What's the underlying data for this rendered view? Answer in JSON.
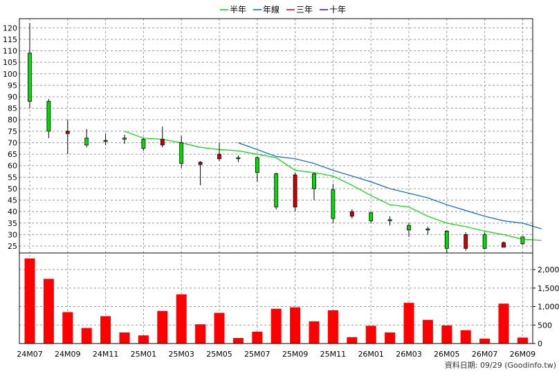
{
  "legend": [
    {
      "name": "半年",
      "color": "#00dd00"
    },
    {
      "name": "年線",
      "color": "#0066cc"
    },
    {
      "name": "三年",
      "color": "#dd0000"
    },
    {
      "name": "十年",
      "color": "#5500bb"
    }
  ],
  "source_note": "資料日期: 09/29 (Goodinfo.tw)",
  "chart_data": [
    {
      "type": "candlestick",
      "x_tick_labels": [
        "24M07",
        "24M09",
        "24M11",
        "25M01",
        "25M03",
        "25M05",
        "25M07",
        "25M09",
        "25M11",
        "26M01",
        "26M03",
        "26M05",
        "26M07",
        "26M09"
      ],
      "y_tick_labels": [
        25,
        30,
        35,
        40,
        45,
        50,
        55,
        60,
        65,
        70,
        75,
        80,
        85,
        90,
        95,
        100,
        105,
        110,
        115,
        120
      ],
      "ylim": [
        22,
        124
      ],
      "grid": true,
      "legend_position": "top-center",
      "up_color": "#00dd00",
      "down_color": "#cc0000",
      "candles": [
        {
          "period": "24M07",
          "open": 88,
          "high": 122,
          "low": 85,
          "close": 109
        },
        {
          "period": "24M08",
          "open": 75,
          "high": 89,
          "low": 72,
          "close": 88
        },
        {
          "period": "24M09",
          "open": 75,
          "high": 80,
          "low": 65,
          "close": 74
        },
        {
          "period": "24M10",
          "open": 69,
          "high": 76,
          "low": 68,
          "close": 72
        },
        {
          "period": "24M11",
          "open": 71,
          "high": 74,
          "low": 69,
          "close": 71
        },
        {
          "period": "24M12",
          "open": 72,
          "high": 73.5,
          "low": 69.5,
          "close": 72
        },
        {
          "period": "25M01",
          "open": 67.5,
          "high": 72,
          "low": 66.5,
          "close": 71.5
        },
        {
          "period": "25M02",
          "open": 71.5,
          "high": 77,
          "low": 68,
          "close": 69
        },
        {
          "period": "25M03",
          "open": 61,
          "high": 73,
          "low": 59,
          "close": 70
        },
        {
          "period": "25M04",
          "open": 61.5,
          "high": 62,
          "low": 51.5,
          "close": 60.5
        },
        {
          "period": "25M05",
          "open": 65,
          "high": 70,
          "low": 62,
          "close": 63
        },
        {
          "period": "25M06",
          "open": 63,
          "high": 64.5,
          "low": 61.5,
          "close": 63.5
        },
        {
          "period": "25M07",
          "open": 57,
          "high": 64,
          "low": 53,
          "close": 63.5
        },
        {
          "period": "25M08",
          "open": 42,
          "high": 57,
          "low": 41,
          "close": 56.5
        },
        {
          "period": "25M09",
          "open": 56,
          "high": 57,
          "low": 40,
          "close": 42
        },
        {
          "period": "25M10",
          "open": 50,
          "high": 57,
          "low": 45,
          "close": 56.5
        },
        {
          "period": "25M11",
          "open": 37,
          "high": 52,
          "low": 35,
          "close": 49.5
        },
        {
          "period": "25M12",
          "open": 40,
          "high": 41,
          "low": 37,
          "close": 38
        },
        {
          "period": "26M01",
          "open": 36,
          "high": 40,
          "low": 35,
          "close": 39.5
        },
        {
          "period": "26M02",
          "open": 36,
          "high": 38,
          "low": 34,
          "close": 36.5
        },
        {
          "period": "26M03",
          "open": 32,
          "high": 35,
          "low": 29,
          "close": 34
        },
        {
          "period": "26M04",
          "open": 32,
          "high": 33.5,
          "low": 30,
          "close": 32.5
        },
        {
          "period": "26M05",
          "open": 24,
          "high": 32,
          "low": 22,
          "close": 31.5
        },
        {
          "period": "26M06",
          "open": 30,
          "high": 31,
          "low": 23,
          "close": 24
        },
        {
          "period": "26M07",
          "open": 24,
          "high": 31,
          "low": 23.5,
          "close": 30
        },
        {
          "period": "26M08",
          "open": 26.5,
          "high": 27,
          "low": 24.5,
          "close": 24.5
        },
        {
          "period": "26M09",
          "open": 26,
          "high": 29,
          "low": 25.5,
          "close": 29
        }
      ],
      "series": [
        {
          "name": "半年",
          "color": "#00dd00",
          "start_index": 5,
          "values": [
            75,
            72,
            71.5,
            70,
            68,
            67,
            66.5,
            65,
            63.5,
            58,
            57,
            55.5,
            51.5,
            47,
            43,
            42,
            38,
            35,
            33.5,
            31.5,
            30,
            28,
            27.5
          ]
        },
        {
          "name": "年線",
          "color": "#0066cc",
          "start_index": 11,
          "values": [
            70,
            67,
            64,
            63,
            61,
            58,
            55.5,
            53,
            50,
            48,
            46,
            43,
            40.5,
            38,
            36,
            35,
            32.5
          ]
        }
      ]
    },
    {
      "type": "bar",
      "categories": [
        "24M07",
        "24M08",
        "24M09",
        "24M10",
        "24M11",
        "24M12",
        "25M01",
        "25M02",
        "25M03",
        "25M04",
        "25M05",
        "25M06",
        "25M07",
        "25M08",
        "25M09",
        "25M10",
        "25M11",
        "25M12",
        "26M01",
        "26M02",
        "26M03",
        "26M04",
        "26M05",
        "26M06",
        "26M07",
        "26M08",
        "26M09"
      ],
      "values": [
        2300,
        1750,
        850,
        420,
        740,
        300,
        220,
        880,
        1330,
        520,
        830,
        150,
        320,
        940,
        980,
        600,
        900,
        170,
        480,
        300,
        1100,
        640,
        490,
        360,
        130,
        1080,
        160
      ],
      "y_tick_labels": [
        "0",
        "500",
        "1,000",
        "1,500",
        "2,000"
      ],
      "ylim": [
        0,
        2300
      ],
      "color": "#ff0000"
    }
  ]
}
